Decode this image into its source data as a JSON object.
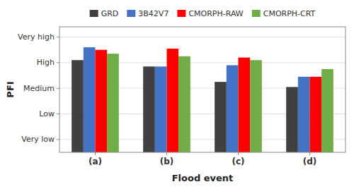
{
  "chart_data": {
    "type": "bar",
    "categories": [
      "(a)",
      "(b)",
      "(c)",
      "(d)"
    ],
    "series": [
      {
        "name": "GRD",
        "color": "#404040",
        "values": [
          4.1,
          3.85,
          3.25,
          3.05
        ]
      },
      {
        "name": "3B42V7",
        "color": "#4472c4",
        "values": [
          4.6,
          3.85,
          3.9,
          3.45
        ]
      },
      {
        "name": "CMORPH-RAW",
        "color": "#ff0000",
        "values": [
          4.5,
          4.55,
          4.2,
          3.45
        ]
      },
      {
        "name": "CMORPH-CRT",
        "color": "#70ad47",
        "values": [
          4.35,
          4.25,
          4.1,
          3.75
        ]
      }
    ],
    "xlabel": "Flood event",
    "ylabel": "PFI",
    "ylim": [
      0.5,
      5.4
    ],
    "yticks": [
      {
        "value": 1,
        "label": "Very low"
      },
      {
        "value": 2,
        "label": "Low"
      },
      {
        "value": 3,
        "label": "Medium"
      },
      {
        "value": 4,
        "label": "High"
      },
      {
        "value": 5,
        "label": "Very high"
      }
    ],
    "grid": true,
    "legend": "top"
  }
}
